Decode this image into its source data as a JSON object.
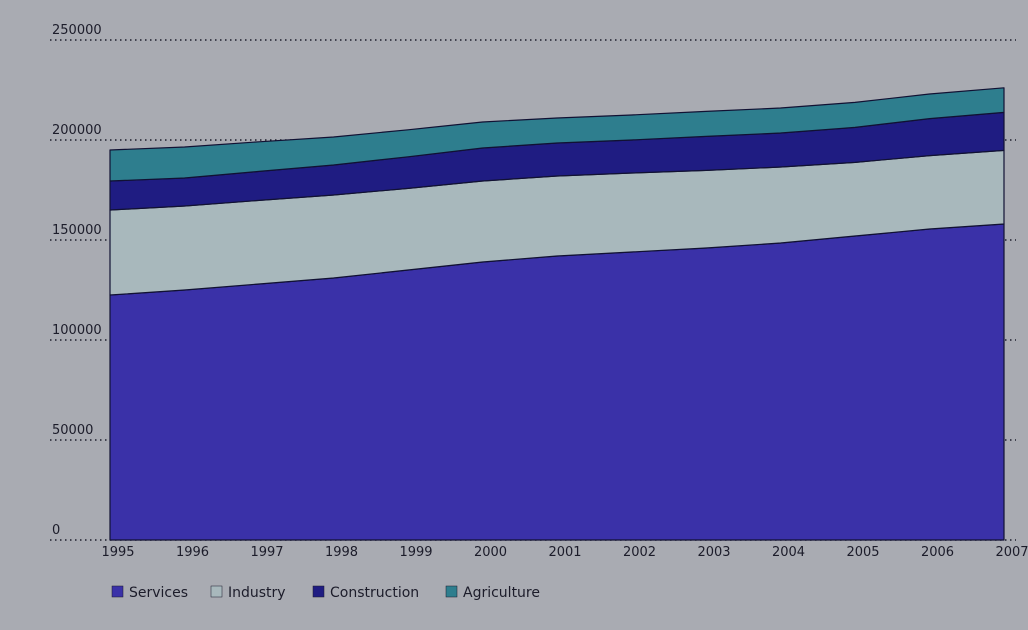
{
  "chart_data": {
    "type": "area",
    "stacked": true,
    "x": [
      "1995",
      "1996",
      "1997",
      "1998",
      "1999",
      "2000",
      "2001",
      "2002",
      "2003",
      "2004",
      "2005",
      "2006",
      "2007"
    ],
    "yticks": [
      "0",
      "50000",
      "100000",
      "150000",
      "200000",
      "250000"
    ],
    "ylim": [
      0,
      250000
    ],
    "grid": true,
    "legend_position": "bottom-left",
    "series": [
      {
        "name": "Services",
        "color": "#3a31a8",
        "values": [
          122500,
          125000,
          128000,
          131000,
          135000,
          139000,
          142000,
          144000,
          146000,
          148500,
          152000,
          155500,
          158000
        ]
      },
      {
        "name": "Industry",
        "color": "#a8b8bc",
        "values": [
          42500,
          42000,
          41800,
          41500,
          40800,
          40500,
          40000,
          39500,
          38800,
          38000,
          36800,
          36700,
          36800
        ]
      },
      {
        "name": "Construction",
        "color": "#1f1c82",
        "values": [
          14500,
          14000,
          14500,
          15000,
          15800,
          16500,
          16500,
          16500,
          17000,
          17000,
          17500,
          18500,
          19000
        ]
      },
      {
        "name": "Agriculture",
        "color": "#2e7e8e",
        "values": [
          15500,
          15500,
          14800,
          14000,
          13500,
          13000,
          12500,
          12500,
          12500,
          12500,
          12500,
          12300,
          12300
        ]
      }
    ]
  }
}
